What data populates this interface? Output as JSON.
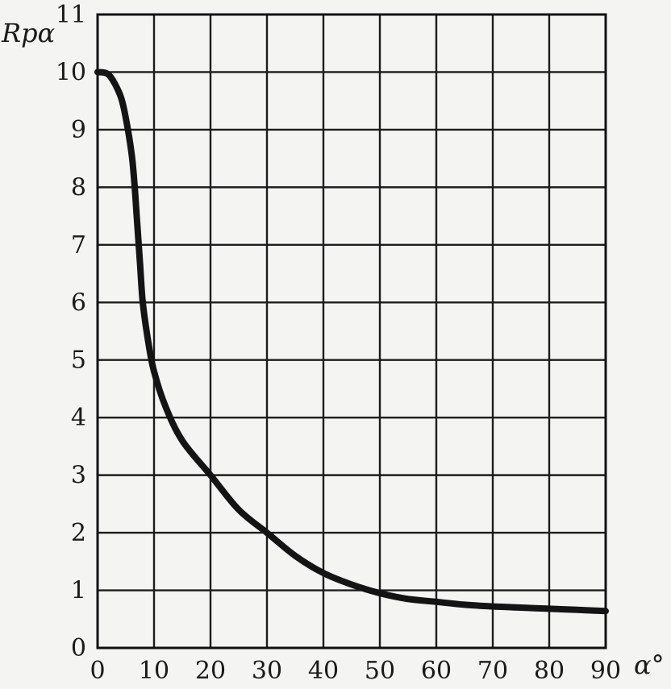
{
  "chart_data": {
    "type": "line",
    "title": "",
    "xlabel": "α°",
    "ylabel": "Rpα",
    "xlim": [
      0,
      90
    ],
    "ylim": [
      0,
      11
    ],
    "xticks": [
      0,
      10,
      20,
      30,
      40,
      50,
      60,
      70,
      80,
      90
    ],
    "yticks": [
      0,
      1,
      2,
      3,
      4,
      5,
      6,
      7,
      8,
      9,
      10,
      11
    ],
    "grid": true,
    "series": [
      {
        "x": [
          0,
          2,
          4,
          5,
          6,
          6.5,
          7,
          7.5,
          8,
          9,
          10,
          12,
          15,
          20,
          25,
          30,
          35,
          40,
          45,
          50,
          55,
          60,
          65,
          70,
          75,
          80,
          85,
          90
        ],
        "y": [
          10.0,
          9.95,
          9.6,
          9.2,
          8.6,
          8.1,
          7.4,
          6.7,
          6.0,
          5.3,
          4.8,
          4.2,
          3.6,
          3.0,
          2.4,
          2.0,
          1.6,
          1.3,
          1.1,
          0.95,
          0.85,
          0.8,
          0.75,
          0.72,
          0.7,
          0.68,
          0.66,
          0.64
        ]
      }
    ]
  }
}
